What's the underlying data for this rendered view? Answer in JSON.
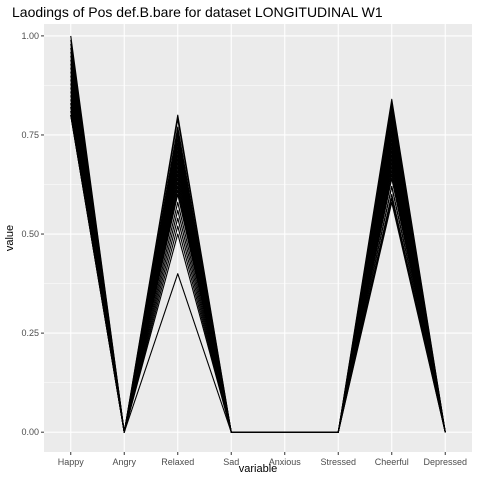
{
  "chart_data": {
    "type": "line",
    "title": "Laodings of Pos def.B.bare for dataset LONGITUDINAL W1",
    "xlabel": "variable",
    "ylabel": "value",
    "categories": [
      "Happy",
      "Angry",
      "Relaxed",
      "Sad",
      "Anxious",
      "Stressed",
      "Cheerful",
      "Depressed"
    ],
    "ylim": [
      -0.05,
      1.03
    ],
    "y_ticks": [
      0,
      0.25,
      0.5,
      0.75,
      1
    ],
    "y_tick_labels": [
      "0.00",
      "0.25",
      "0.50",
      "0.75",
      "1.00"
    ],
    "grid": true,
    "legend": "none",
    "colors": {
      "panel": "#ebebeb",
      "grid": "#ffffff",
      "line": "#000000",
      "tick_text": "#4d4d4d"
    },
    "series": [
      {
        "values": [
          1.0,
          0,
          0.8,
          0,
          0,
          0,
          0.84,
          0
        ]
      },
      {
        "values": [
          0.99,
          0,
          0.79,
          0,
          0,
          0,
          0.83,
          0
        ]
      },
      {
        "values": [
          0.98,
          0,
          0.77,
          0,
          0,
          0,
          0.82,
          0
        ]
      },
      {
        "values": [
          0.97,
          0,
          0.76,
          0,
          0,
          0,
          0.81,
          0
        ]
      },
      {
        "values": [
          0.96,
          0,
          0.75,
          0,
          0,
          0,
          0.8,
          0
        ]
      },
      {
        "values": [
          0.95,
          0,
          0.74,
          0,
          0,
          0,
          0.79,
          0
        ]
      },
      {
        "values": [
          0.94,
          0,
          0.73,
          0,
          0,
          0,
          0.78,
          0
        ]
      },
      {
        "values": [
          0.93,
          0,
          0.72,
          0,
          0,
          0,
          0.77,
          0
        ]
      },
      {
        "values": [
          0.92,
          0,
          0.71,
          0,
          0,
          0,
          0.76,
          0
        ]
      },
      {
        "values": [
          0.91,
          0,
          0.7,
          0,
          0,
          0,
          0.75,
          0
        ]
      },
      {
        "values": [
          0.9,
          0,
          0.69,
          0,
          0,
          0,
          0.74,
          0
        ]
      },
      {
        "values": [
          0.89,
          0,
          0.68,
          0,
          0,
          0,
          0.73,
          0
        ]
      },
      {
        "values": [
          0.88,
          0,
          0.67,
          0,
          0,
          0,
          0.72,
          0
        ]
      },
      {
        "values": [
          0.87,
          0,
          0.66,
          0,
          0,
          0,
          0.71,
          0
        ]
      },
      {
        "values": [
          0.86,
          0,
          0.65,
          0,
          0,
          0,
          0.7,
          0
        ]
      },
      {
        "values": [
          0.85,
          0,
          0.64,
          0,
          0,
          0,
          0.69,
          0
        ]
      },
      {
        "values": [
          0.84,
          0,
          0.63,
          0,
          0,
          0,
          0.68,
          0
        ]
      },
      {
        "values": [
          0.83,
          0,
          0.62,
          0,
          0,
          0,
          0.67,
          0
        ]
      },
      {
        "values": [
          0.83,
          0,
          0.61,
          0,
          0,
          0,
          0.66,
          0
        ]
      },
      {
        "values": [
          0.82,
          0,
          0.6,
          0,
          0,
          0,
          0.65,
          0
        ]
      },
      {
        "values": [
          0.82,
          0,
          0.58,
          0,
          0,
          0,
          0.64,
          0
        ]
      },
      {
        "values": [
          0.81,
          0,
          0.56,
          0,
          0,
          0,
          0.62,
          0
        ]
      },
      {
        "values": [
          0.81,
          0,
          0.54,
          0,
          0,
          0,
          0.6,
          0
        ]
      },
      {
        "values": [
          0.8,
          0,
          0.52,
          0,
          0,
          0,
          0.59,
          0
        ]
      },
      {
        "values": [
          0.8,
          0,
          0.5,
          0,
          0,
          0,
          0.58,
          0
        ]
      },
      {
        "values": [
          0.8,
          0,
          0.4,
          0,
          0,
          0,
          0.62,
          0
        ]
      }
    ]
  }
}
